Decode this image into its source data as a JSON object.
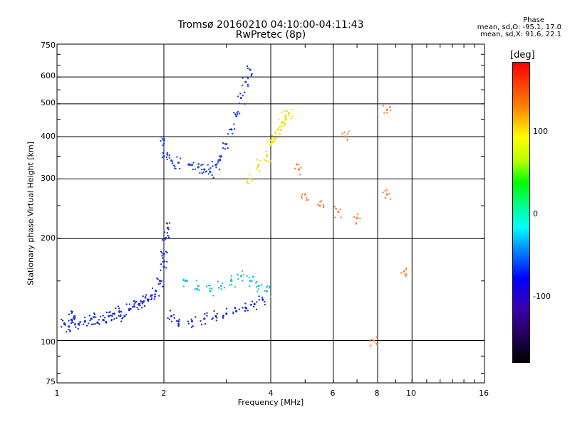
{
  "header": {
    "title_line1": "Tromsø 20160210 04:10:00-04:11:43",
    "title_line2": "RwPretec (8p)",
    "phase_heading": "Phase",
    "phase_o": "mean, sd,O: -95.1, 17.0",
    "phase_x": "mean, sd,X:  91.6, 22.1"
  },
  "colorbar": {
    "label": "[deg]",
    "ticks": [
      "100",
      "0",
      "-100"
    ],
    "colors": [
      "#ff0000",
      "#ff7a00",
      "#ffff00",
      "#00ff00",
      "#00ffff",
      "#0000ff",
      "#3a00b0",
      "#000000"
    ]
  },
  "chart_data": {
    "type": "scatter",
    "title": "Tromsø 20160210 04:10:00-04:11:43",
    "subtitle": "RwPretec (8p)",
    "xlabel": "Frequency [MHz]",
    "ylabel": "Stationary phase Virtual Height [km]",
    "x_scale": "log",
    "y_scale": "log",
    "xlim": [
      1,
      16
    ],
    "ylim": [
      75,
      750
    ],
    "x_ticks": [
      "1",
      "2",
      "4",
      "6",
      "8",
      "10",
      "16"
    ],
    "y_ticks": [
      "750",
      "600",
      "500",
      "400",
      "300",
      "200",
      "100",
      "75"
    ],
    "x_gridlines": [
      2,
      4,
      6,
      8,
      10
    ],
    "y_gridlines": [
      100,
      200,
      300,
      400,
      500,
      600
    ],
    "grid": true,
    "color_variable": "Phase [deg]",
    "traces": [
      {
        "kind": "O-mode E/F1 low trace",
        "color": "#1e2cdc",
        "points": [
          [
            1.05,
            112
          ],
          [
            1.08,
            110
          ],
          [
            1.1,
            115
          ],
          [
            1.12,
            118
          ],
          [
            1.15,
            112
          ],
          [
            1.2,
            114
          ],
          [
            1.25,
            116
          ],
          [
            1.3,
            113
          ],
          [
            1.35,
            115
          ],
          [
            1.4,
            118
          ],
          [
            1.45,
            120
          ],
          [
            1.5,
            122
          ],
          [
            1.55,
            118
          ],
          [
            1.6,
            124
          ],
          [
            1.65,
            126
          ],
          [
            1.7,
            128
          ],
          [
            1.75,
            130
          ],
          [
            1.8,
            132
          ],
          [
            1.85,
            136
          ],
          [
            1.9,
            140
          ],
          [
            1.95,
            150
          ],
          [
            2.0,
            165
          ],
          [
            2.0,
            180
          ],
          [
            2.02,
            200
          ],
          [
            2.05,
            215
          ],
          [
            2.1,
            118
          ],
          [
            2.2,
            114
          ],
          [
            2.4,
            114
          ],
          [
            2.6,
            116
          ],
          [
            2.8,
            118
          ],
          [
            3.0,
            120
          ],
          [
            3.2,
            122
          ],
          [
            3.4,
            125
          ],
          [
            3.6,
            128
          ],
          [
            3.8,
            132
          ]
        ]
      },
      {
        "kind": "O-mode F2 trace",
        "color": "#2440e0",
        "points": [
          [
            2.0,
            350
          ],
          [
            2.0,
            390
          ],
          [
            2.1,
            340
          ],
          [
            2.2,
            335
          ],
          [
            2.4,
            330
          ],
          [
            2.5,
            325
          ],
          [
            2.6,
            320
          ],
          [
            2.7,
            315
          ],
          [
            2.8,
            330
          ],
          [
            2.9,
            350
          ],
          [
            3.0,
            380
          ],
          [
            3.1,
            420
          ],
          [
            3.2,
            460
          ],
          [
            3.3,
            520
          ],
          [
            3.4,
            580
          ],
          [
            3.5,
            630
          ]
        ]
      },
      {
        "kind": "X-mode trace",
        "color": "#f0e000",
        "points": [
          [
            3.5,
            300
          ],
          [
            3.7,
            330
          ],
          [
            3.9,
            350
          ],
          [
            4.0,
            380
          ],
          [
            4.1,
            395
          ],
          [
            4.2,
            420
          ],
          [
            4.3,
            440
          ],
          [
            4.4,
            460
          ],
          [
            4.5,
            470
          ]
        ]
      },
      {
        "kind": "X-mode lower trace",
        "color": "#20c0e0",
        "points": [
          [
            2.3,
            150
          ],
          [
            2.5,
            145
          ],
          [
            2.7,
            140
          ],
          [
            2.9,
            145
          ],
          [
            3.1,
            150
          ],
          [
            3.3,
            155
          ],
          [
            3.5,
            150
          ],
          [
            3.7,
            145
          ],
          [
            3.9,
            140
          ]
        ]
      },
      {
        "kind": "scattered echoes",
        "color": "#ff8030",
        "points": [
          [
            4.8,
            320
          ],
          [
            5.0,
            270
          ],
          [
            5.5,
            250
          ],
          [
            6.2,
            240
          ],
          [
            6.5,
            400
          ],
          [
            7.0,
            230
          ],
          [
            7.8,
            100
          ],
          [
            8.5,
            270
          ],
          [
            8.5,
            480
          ],
          [
            9.5,
            160
          ]
        ]
      }
    ]
  }
}
